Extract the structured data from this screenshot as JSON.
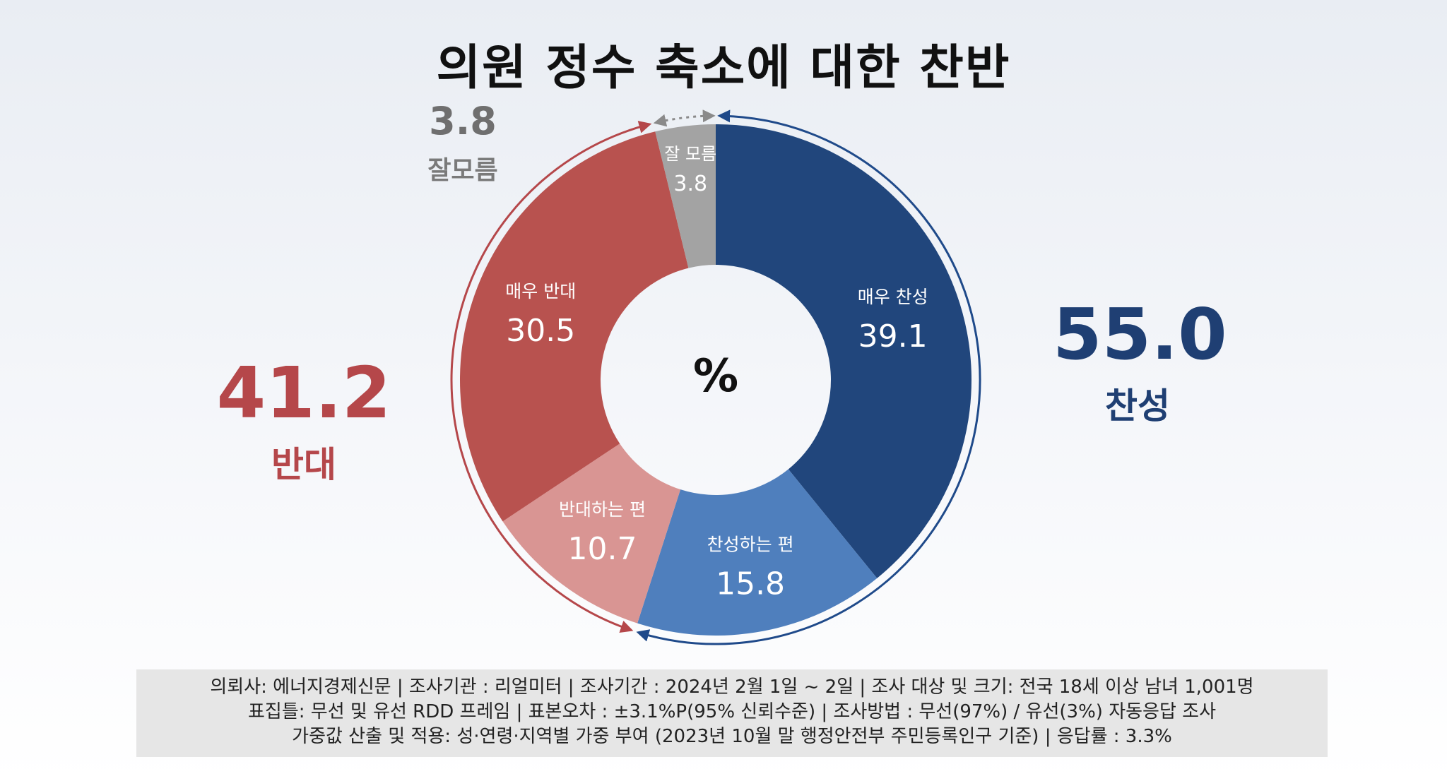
{
  "title": "의원 정수 축소에 대한 찬반",
  "chart_data": {
    "type": "pie",
    "center_label": "%",
    "slices": [
      {
        "label": "매우 찬성",
        "value": 39.1,
        "color": "#21467c"
      },
      {
        "label": "찬성하는 편",
        "value": 15.8,
        "color": "#4f7fbd"
      },
      {
        "label": "반대하는 편",
        "value": 10.7,
        "color": "#d99593"
      },
      {
        "label": "매우 반대",
        "value": 30.5,
        "color": "#b8524f"
      },
      {
        "label": "잘 모름",
        "value": 3.8,
        "color": "#a3a3a3"
      }
    ]
  },
  "summary": {
    "favor": {
      "value": "55.0",
      "label": "찬성",
      "color": "#1f3f73"
    },
    "oppose": {
      "value": "41.2",
      "label": "반대",
      "color": "#b5474a"
    },
    "dont_know": {
      "value": "3.8",
      "label": "잘모름",
      "color": "#8a8a8a"
    }
  },
  "footer": {
    "line1": "의뢰사: 에너지경제신문 | 조사기관 : 리얼미터  |  조사기간 : 2024년 2월 1일 ~ 2일 | 조사 대상 및 크기: 전국 18세 이상 남녀 1,001명",
    "line2": "표집틀: 무선 및 유선 RDD 프레임 | 표본오차 : ±3.1%P(95% 신뢰수준) | 조사방법 : 무선(97%) / 유선(3%) 자동응답 조사",
    "line3": "가중값 산출 및 적용: 성·연령·지역별 가중 부여 (2023년 10월 말 행정안전부 주민등록인구 기준) | 응답률 : 3.3%"
  }
}
